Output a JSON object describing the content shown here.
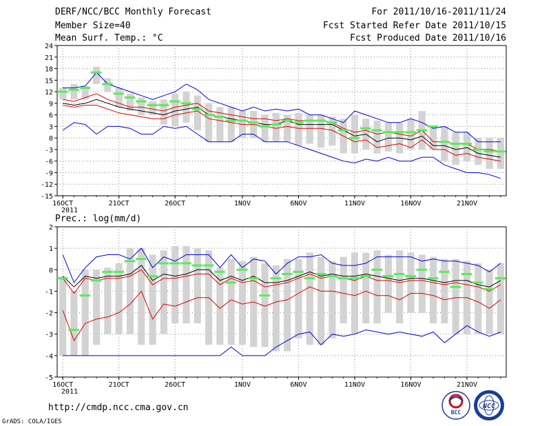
{
  "header": {
    "title": "DERF/NCC/BCC Monthly Forecast",
    "member_size": "Member Size=40",
    "for_period": "For 2011/10/16-2011/11/24",
    "fcst_started": "Fcst Started Refer Date 2011/10/15",
    "fcst_produced": "Fcst Produced Date 2011/10/16"
  },
  "footer": {
    "url": "http://cmdp.ncc.cma.gov.cn",
    "grads": "GrADS: COLA/IGES",
    "logo_bcc": "BCC",
    "logo_ncc": "NCC"
  },
  "colors": {
    "bar": "#d3d3d3",
    "obs": "#55ee55",
    "mean": "#000000",
    "inner_band": "#dd0000",
    "outer_band": "#0000dd"
  },
  "chart_data": [
    {
      "type": "line",
      "title": "Mean Surf. Temp.: °C",
      "xlabel": "",
      "ylabel": "",
      "x_start": "2011/10/16",
      "n_days": 40,
      "ylim": [
        -15,
        24
      ],
      "yticks": [
        -15,
        -12,
        -9,
        -6,
        -3,
        0,
        3,
        6,
        9,
        12,
        15,
        18,
        21,
        24
      ],
      "xtick_labels": [
        "16OCT\n2011",
        "21OCT",
        "26OCT",
        "1NOV",
        "6NOV",
        "11NOV",
        "16NOV",
        "21NOV"
      ],
      "xtick_days": [
        0,
        5,
        10,
        16,
        21,
        26,
        31,
        36
      ],
      "series": [
        {
          "name": "mean",
          "values": [
            9,
            8.5,
            9,
            10,
            9,
            8,
            7.5,
            7,
            6.5,
            6,
            7,
            7.5,
            8,
            6,
            5.5,
            5,
            4.5,
            4,
            3.5,
            3.5,
            4.5,
            3.5,
            3.5,
            3.5,
            3.5,
            2,
            0.5,
            1,
            -1,
            0,
            0,
            -0.5,
            0.5,
            -2,
            -2,
            -3,
            -2.5,
            -4,
            -4.5,
            -5
          ]
        },
        {
          "name": "inner_upper",
          "values": [
            10,
            9.5,
            10.5,
            11.5,
            10,
            9,
            8,
            8,
            7.5,
            7,
            8,
            8.5,
            9,
            7,
            6.5,
            6,
            5.5,
            5,
            5,
            4.5,
            5,
            4.5,
            4.5,
            4.5,
            4,
            2.5,
            1.5,
            2,
            1,
            1.5,
            1,
            0.5,
            2,
            -1,
            -1,
            -1.5,
            -1.5,
            -3,
            -3,
            -3.5
          ]
        },
        {
          "name": "inner_lower",
          "values": [
            8.5,
            8,
            8.5,
            8.5,
            7.5,
            6.5,
            6,
            5.5,
            5,
            5,
            6,
            6.5,
            7,
            5,
            4.5,
            4,
            3.5,
            3.5,
            3,
            2.5,
            3,
            2.5,
            2.5,
            2.5,
            2,
            0.5,
            -1,
            -0.5,
            -2.5,
            -2,
            -1.5,
            -2.5,
            -0.5,
            -3,
            -3,
            -4.5,
            -4,
            -5,
            -5.5,
            -6
          ]
        },
        {
          "name": "outer_upper",
          "values": [
            13,
            13,
            13.5,
            17,
            14,
            13,
            12,
            11,
            10,
            11,
            12,
            14,
            12.5,
            10,
            9,
            8,
            7,
            8,
            7,
            7.5,
            7,
            7.5,
            6,
            6,
            5,
            4,
            7,
            6,
            5,
            4,
            4,
            5,
            4,
            2.5,
            3,
            1.5,
            1.5,
            -1,
            -1,
            -1
          ]
        },
        {
          "name": "outer_lower",
          "values": [
            2,
            4,
            3.5,
            1,
            3,
            3,
            2.5,
            1,
            1,
            3,
            2.5,
            3,
            1,
            -1,
            -1,
            -1,
            1,
            1,
            -1,
            -1,
            -1,
            -2,
            -3,
            -4,
            -5,
            -6,
            -6.5,
            -5.5,
            -6,
            -5,
            -6,
            -6,
            -5,
            -5,
            -7,
            -8,
            -9,
            -9,
            -9.5,
            -10.5
          ]
        },
        {
          "name": "obs",
          "values": [
            12,
            12.5,
            13,
            17,
            14,
            11.5,
            10.5,
            9.5,
            8.5,
            8.5,
            9.5,
            9,
            7.5,
            6,
            5.5,
            4.5,
            4.5,
            4,
            3,
            3.5,
            4.5,
            4,
            4.5,
            4.5,
            4,
            2,
            0,
            2.5,
            2,
            1.5,
            1.5,
            1.5,
            2,
            3,
            -1,
            -1.5,
            -1.5,
            -3,
            -3.5,
            -3.5
          ]
        },
        {
          "name": "bar_high",
          "values": [
            13,
            14,
            13.5,
            18.5,
            15.5,
            13,
            11.5,
            10.5,
            9.5,
            10,
            11.5,
            12,
            11,
            9,
            8,
            8,
            7,
            7,
            6,
            6.5,
            6,
            6.5,
            6,
            6,
            5.5,
            5,
            6,
            5,
            4.5,
            4,
            4,
            5,
            7,
            3,
            3,
            1.5,
            1.5,
            0,
            0,
            0
          ]
        },
        {
          "name": "bar_low",
          "values": [
            10,
            10,
            10,
            14,
            12,
            8,
            7,
            6,
            6,
            3.5,
            3,
            4,
            2,
            -1,
            -1,
            -1,
            0,
            0,
            -1,
            -1,
            -1,
            -2,
            -1.5,
            -2.5,
            -2,
            -4,
            -4,
            -3,
            -4,
            -3.5,
            -4,
            -3,
            -3,
            -3,
            -6,
            -7,
            -6,
            -7,
            -8,
            -8
          ]
        }
      ]
    },
    {
      "type": "line",
      "title": "Prec.: log(mm/d)",
      "xlabel": "",
      "ylabel": "",
      "x_start": "2011/10/16",
      "n_days": 40,
      "ylim": [
        -5,
        2
      ],
      "yticks": [
        -5,
        -4,
        -3,
        -2,
        -1,
        0,
        1,
        2
      ],
      "xtick_labels": [
        "16OCT\n2011",
        "21OCT",
        "26OCT",
        "1NOV",
        "6NOV",
        "11NOV",
        "16NOV",
        "21NOV"
      ],
      "xtick_days": [
        0,
        5,
        10,
        16,
        21,
        26,
        31,
        36
      ],
      "series": [
        {
          "name": "mean",
          "values": [
            -0.3,
            -0.8,
            -0.3,
            -0.4,
            -0.3,
            -0.3,
            -0.2,
            0.2,
            -0.5,
            -0.2,
            -0.3,
            -0.2,
            0.0,
            0.0,
            -0.5,
            -0.3,
            -0.5,
            -0.3,
            -0.6,
            -0.6,
            -0.5,
            -0.3,
            -0.1,
            -0.3,
            -0.2,
            -0.3,
            -0.3,
            -0.2,
            -0.3,
            -0.4,
            -0.5,
            -0.4,
            -0.4,
            -0.5,
            -0.6,
            -0.5,
            -0.5,
            -0.7,
            -0.8,
            -0.5
          ]
        },
        {
          "name": "inner_upper",
          "values": [
            -0.4,
            -1.1,
            -0.4,
            -0.5,
            -0.4,
            -0.4,
            -0.3,
            0.0,
            -0.7,
            -0.4,
            -0.4,
            -0.3,
            -0.2,
            -0.2,
            -0.7,
            -0.4,
            -0.6,
            -0.5,
            -0.8,
            -0.7,
            -0.6,
            -0.4,
            -0.2,
            -0.4,
            -0.3,
            -0.4,
            -0.5,
            -0.3,
            -0.5,
            -0.5,
            -0.6,
            -0.5,
            -0.5,
            -0.6,
            -0.7,
            -0.6,
            -0.7,
            -0.8,
            -1.0,
            -0.7
          ]
        },
        {
          "name": "inner_lower",
          "values": [
            -1.9,
            -3.3,
            -2.5,
            -2.3,
            -2.2,
            -2.0,
            -1.6,
            -1.0,
            -2.3,
            -1.6,
            -1.7,
            -1.5,
            -1.3,
            -1.3,
            -1.8,
            -1.4,
            -1.6,
            -1.5,
            -1.7,
            -1.5,
            -1.4,
            -1.1,
            -0.8,
            -1.0,
            -1.0,
            -1.1,
            -1.2,
            -1.0,
            -1.2,
            -1.2,
            -1.4,
            -1.1,
            -1.1,
            -1.2,
            -1.4,
            -1.3,
            -1.3,
            -1.5,
            -1.8,
            -1.4
          ]
        },
        {
          "name": "outer_upper",
          "values": [
            0.7,
            -0.6,
            0.1,
            0.6,
            0.7,
            0.7,
            0.5,
            1.0,
            0.1,
            0.6,
            0.4,
            0.7,
            0.7,
            0.7,
            0.1,
            0.7,
            0.1,
            0.5,
            0.4,
            -0.2,
            0.3,
            0.6,
            0.6,
            0.7,
            0.3,
            0.2,
            0.2,
            0.3,
            0.6,
            0.6,
            0.6,
            0.6,
            0.4,
            0.5,
            0.4,
            0.4,
            0.3,
            0.2,
            -0.1,
            0.3
          ]
        },
        {
          "name": "outer_lower",
          "values": [
            -4.0,
            -4.0,
            -4.0,
            -4.0,
            -4.0,
            -4.0,
            -4.0,
            -4.0,
            -4.0,
            -4.0,
            -4.0,
            -4.0,
            -4.0,
            -4.0,
            -4.0,
            -3.6,
            -4.0,
            -4.0,
            -4.0,
            -3.6,
            -3.3,
            -3.0,
            -2.9,
            -3.5,
            -3.0,
            -3.1,
            -3.0,
            -2.8,
            -2.9,
            -3.0,
            -2.9,
            -3.0,
            -3.1,
            -2.9,
            -3.4,
            -3.0,
            -2.6,
            -2.9,
            -3.1,
            -2.9
          ]
        },
        {
          "name": "obs",
          "values": [
            -0.4,
            -2.8,
            -1.2,
            -0.5,
            -0.1,
            -0.1,
            0.4,
            0.5,
            -0.3,
            0.3,
            0.3,
            0.3,
            0.2,
            0.2,
            -0.1,
            -0.6,
            0.0,
            -0.4,
            -1.2,
            -0.4,
            -0.2,
            -0.1,
            -0.4,
            -0.2,
            -0.3,
            -0.4,
            -0.4,
            -0.3,
            0.0,
            -0.3,
            -0.2,
            -0.3,
            0.0,
            -0.4,
            -0.1,
            -0.8,
            -0.2,
            -0.6,
            -0.9,
            -0.4
          ]
        },
        {
          "name": "bar_high",
          "values": [
            -0.3,
            -1.0,
            0.0,
            0.0,
            0.1,
            0.3,
            1.0,
            1.0,
            0.7,
            0.9,
            1.1,
            1.1,
            1.0,
            0.9,
            0.1,
            0.5,
            0.4,
            0.6,
            0.3,
            0.2,
            0.5,
            0.5,
            0.8,
            0.6,
            0.4,
            0.6,
            0.8,
            0.8,
            0.9,
            0.7,
            0.9,
            0.8,
            0.7,
            0.6,
            0.5,
            0.5,
            0.4,
            0.3,
            0.0,
            0.3
          ]
        },
        {
          "name": "bar_low",
          "values": [
            -4.0,
            -4.0,
            -4.0,
            -3.5,
            -3.0,
            -3.0,
            -3.0,
            -3.5,
            -3.5,
            -3.0,
            -2.5,
            -2.5,
            -2.5,
            -3.5,
            -3.5,
            -3.5,
            -3.5,
            -3.6,
            -3.6,
            -3.8,
            -3.8,
            -3.2,
            -3.5,
            -3.5,
            -3.2,
            -2.5,
            -3.0,
            -2.5,
            -2.5,
            -2.0,
            -2.5,
            -2.0,
            -2.0,
            -2.5,
            -2.5,
            -3.0,
            -3.0,
            -3.0,
            -3.0,
            -3.0
          ]
        }
      ]
    }
  ]
}
